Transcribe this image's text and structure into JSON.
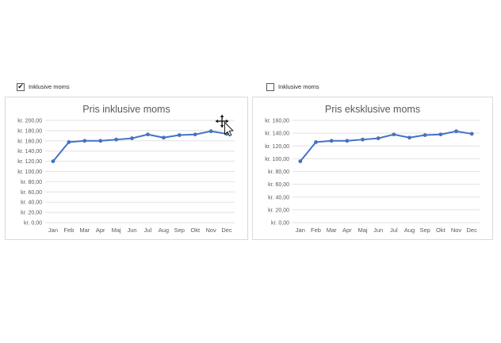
{
  "checkboxes": [
    {
      "label": "Inklusive moms",
      "checked": true
    },
    {
      "label": "Inklusive moms",
      "checked": false
    }
  ],
  "colors": {
    "line": "#4472C4",
    "grid": "#e2e2e2",
    "axis_text": "#595959",
    "title_text": "#595959",
    "panel_border": "#d9d9d9"
  },
  "chart_data": [
    {
      "type": "line",
      "title": "Pris inklusive moms",
      "categories": [
        "Jan",
        "Feb",
        "Mar",
        "Apr",
        "Maj",
        "Jun",
        "Jul",
        "Aug",
        "Sep",
        "Okt",
        "Nov",
        "Dec"
      ],
      "values": [
        120,
        157.5,
        160,
        160,
        162.5,
        165,
        172.5,
        166.25,
        171.25,
        172.5,
        178.75,
        173.75
      ],
      "ylim": [
        0,
        200
      ],
      "ytick_step": 20,
      "ytick_labels": [
        "kr. 200,00",
        "kr. 180,00",
        "kr. 160,00",
        "kr. 140,00",
        "kr. 120,00",
        "kr. 100,00",
        "kr. 80,00",
        "kr. 60,00",
        "kr. 40,00",
        "kr. 20,00",
        "kr. 0,00"
      ],
      "xlabel": "",
      "ylabel": "",
      "grid": true,
      "legend": "none",
      "line_color": "#4472C4",
      "markers": true
    },
    {
      "type": "line",
      "title": "Pris eksklusive moms",
      "categories": [
        "Jan",
        "Feb",
        "Mar",
        "Apr",
        "Maj",
        "Jun",
        "Jul",
        "Aug",
        "Sep",
        "Okt",
        "Nov",
        "Dec"
      ],
      "values": [
        96,
        126,
        128,
        128,
        130,
        132,
        138,
        133,
        137,
        138,
        143,
        139
      ],
      "ylim": [
        0,
        160
      ],
      "ytick_step": 20,
      "ytick_labels": [
        "kr. 160,00",
        "kr. 140,00",
        "kr. 120,00",
        "kr. 100,00",
        "kr. 80,00",
        "kr. 60,00",
        "kr. 40,00",
        "kr. 20,00",
        "kr. 0,00"
      ],
      "xlabel": "",
      "ylabel": "",
      "grid": true,
      "legend": "none",
      "line_color": "#4472C4",
      "markers": true
    }
  ]
}
